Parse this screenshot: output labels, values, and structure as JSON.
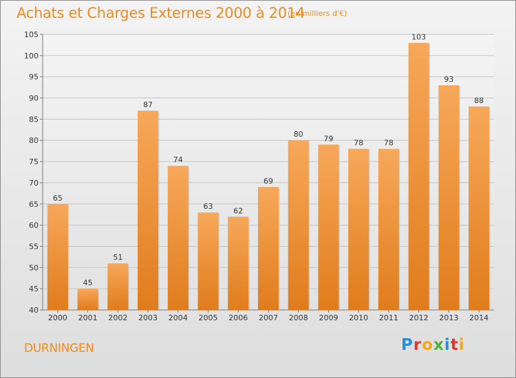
{
  "title": "Achats et Charges Externes 2000 à 2014",
  "subtitle": "(en milliers d'€)",
  "commune": "DURNINGEN",
  "logo": {
    "letters": [
      {
        "char": "P",
        "color": "#2a8fd4"
      },
      {
        "char": "r",
        "color": "#e0382c"
      },
      {
        "char": "o",
        "color": "#f2a81d"
      },
      {
        "char": "x",
        "color": "#4fae3d"
      },
      {
        "char": "i",
        "color": "#2a8fd4"
      },
      {
        "char": "t",
        "color": "#e0382c"
      },
      {
        "char": "i",
        "color": "#f2a81d"
      }
    ]
  },
  "colors": {
    "accent": "#f08a1d",
    "bar_light": "#f7a85a",
    "bar_dark": "#e07c1c"
  },
  "chart_data": {
    "type": "bar",
    "categories": [
      "2000",
      "2001",
      "2002",
      "2003",
      "2004",
      "2005",
      "2006",
      "2007",
      "2008",
      "2009",
      "2010",
      "2011",
      "2012",
      "2013",
      "2014"
    ],
    "values": [
      65,
      45,
      51,
      87,
      74,
      63,
      62,
      69,
      80,
      79,
      78,
      78,
      103,
      93,
      88
    ],
    "ylim": [
      40,
      105
    ],
    "yticks": [
      40,
      45,
      50,
      55,
      60,
      65,
      70,
      75,
      80,
      85,
      90,
      95,
      100,
      105
    ],
    "grid": true
  }
}
